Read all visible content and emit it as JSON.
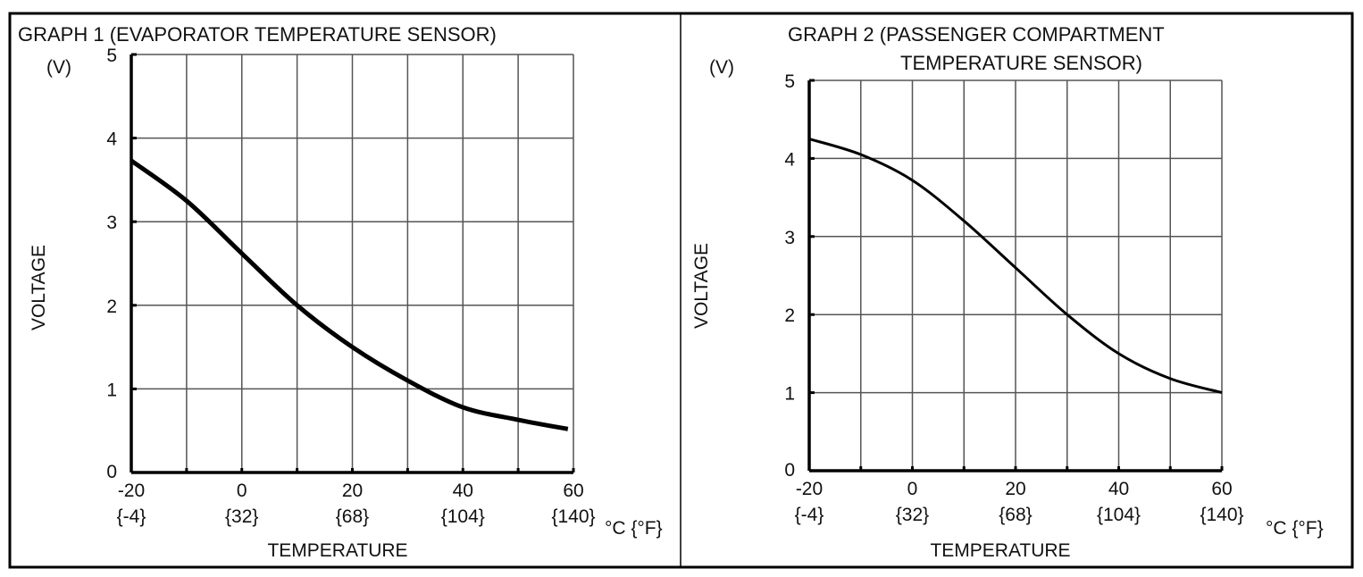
{
  "chart_data": [
    {
      "type": "line",
      "title": "GRAPH 1 (EVAPORATOR TEMPERATURE SENSOR)",
      "xlabel": "TEMPERATURE",
      "ylabel": "VOLTAGE",
      "yunit": "(V)",
      "xunit": "°C {°F}",
      "xlim": [
        -20,
        60
      ],
      "ylim": [
        0,
        5
      ],
      "grid": true,
      "x_ticks": [
        "-20",
        "0",
        "20",
        "40",
        "60"
      ],
      "x_ticks_f": [
        "{-4}",
        "{32}",
        "{68}",
        "{104}",
        "{140}"
      ],
      "y_ticks": [
        "0",
        "1",
        "2",
        "3",
        "4",
        "5"
      ],
      "x": [
        -20,
        -10,
        0,
        10,
        20,
        30,
        40,
        50,
        59
      ],
      "y": [
        3.73,
        3.25,
        2.62,
        2.0,
        1.5,
        1.1,
        0.78,
        0.63,
        0.52
      ]
    },
    {
      "type": "line",
      "title": "GRAPH 2  (PASSENGER COMPARTMENT",
      "title_line2": "TEMPERATURE SENSOR)",
      "xlabel": "TEMPERATURE",
      "ylabel": "VOLTAGE",
      "yunit": "(V)",
      "xunit": "°C {°F}",
      "xlim": [
        -20,
        60
      ],
      "ylim": [
        0,
        5
      ],
      "grid": true,
      "x_ticks": [
        "-20",
        "0",
        "20",
        "40",
        "60"
      ],
      "x_ticks_f": [
        "{-4}",
        "{32}",
        "{68}",
        "{104}",
        "{140}"
      ],
      "y_ticks": [
        "0",
        "1",
        "2",
        "3",
        "4",
        "5"
      ],
      "x": [
        -20,
        -10,
        0,
        10,
        20,
        30,
        40,
        50,
        60
      ],
      "y": [
        4.25,
        4.05,
        3.72,
        3.2,
        2.6,
        2.0,
        1.5,
        1.18,
        1.0
      ]
    }
  ]
}
